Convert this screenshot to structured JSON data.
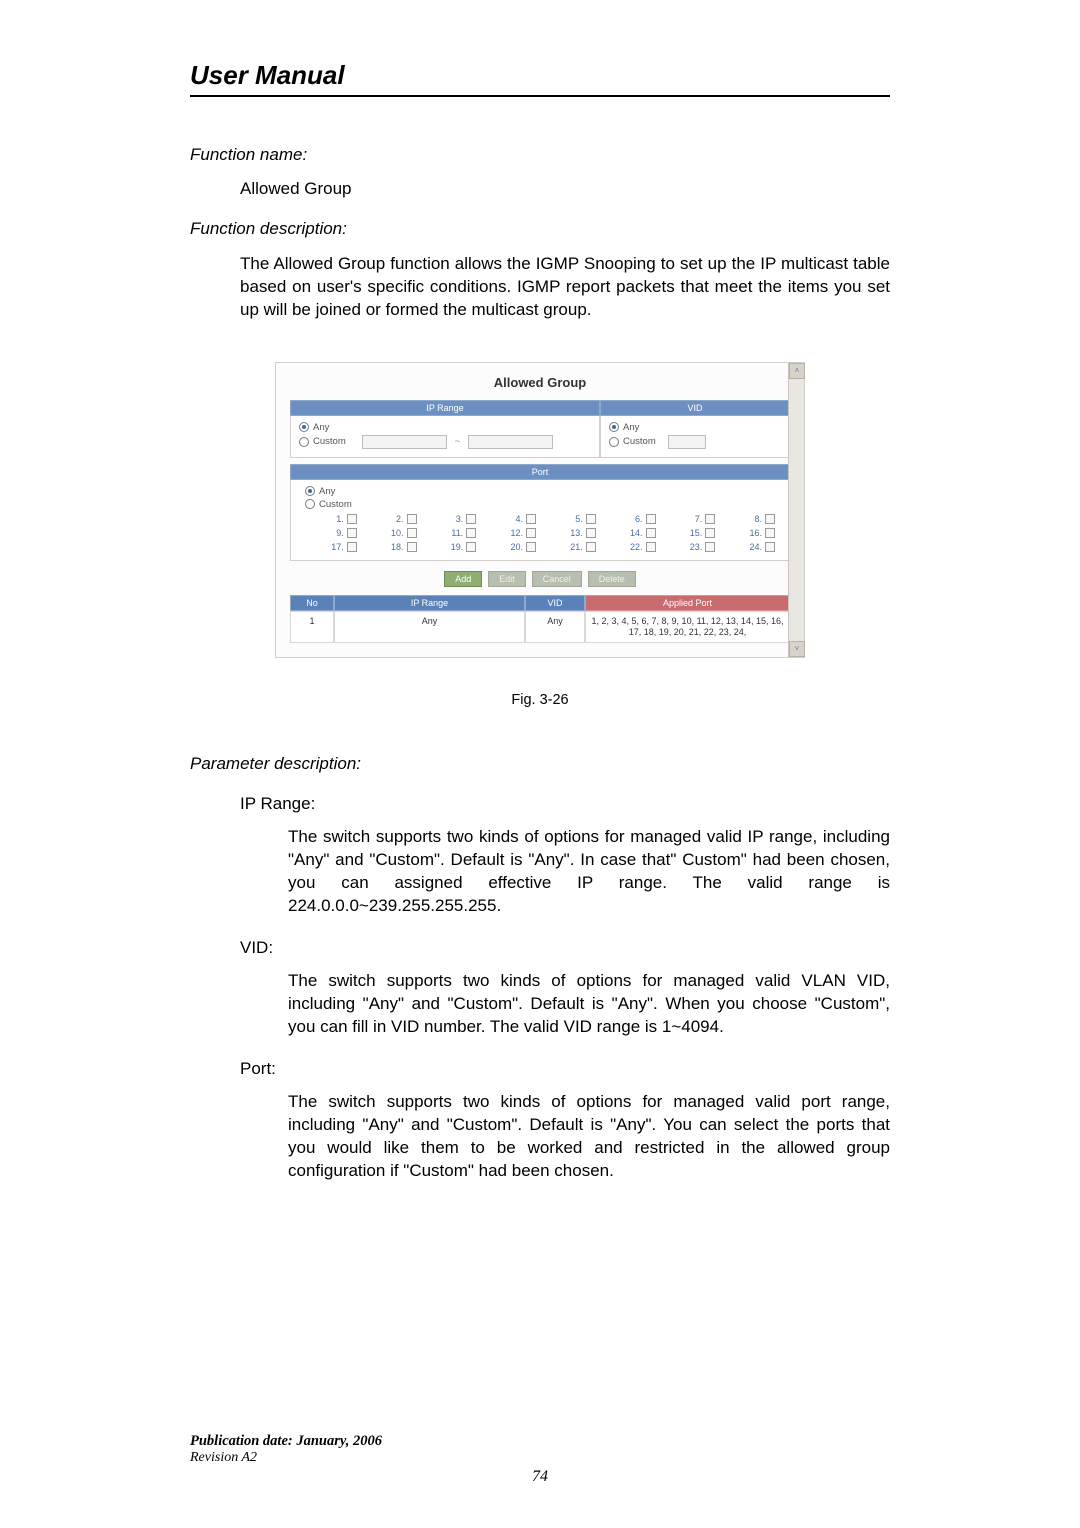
{
  "header_title": "User Manual",
  "function_name_label": "Function name:",
  "function_name": "Allowed Group",
  "function_desc_label": "Function description:",
  "function_desc": "The Allowed Group function allows the IGMP Snooping to set up the IP multicast table based on user's specific conditions. IGMP report packets that meet the items you set up will be joined or formed the multicast group.",
  "screenshot": {
    "title": "Allowed Group",
    "ip_range_header": "IP Range",
    "vid_header": "VID",
    "any_label": "Any",
    "custom_label": "Custom",
    "tilde": "~",
    "port_header": "Port",
    "port_numbers": [
      "1.",
      "2.",
      "3.",
      "4.",
      "5.",
      "6.",
      "7.",
      "8.",
      "9.",
      "10.",
      "11.",
      "12.",
      "13.",
      "14.",
      "15.",
      "16.",
      "17.",
      "18.",
      "19.",
      "20.",
      "21.",
      "22.",
      "23.",
      "24."
    ],
    "btn_add": "Add",
    "btn_edit": "Edit",
    "btn_cancel": "Cancel",
    "btn_delete": "Delete",
    "col_no": "No",
    "col_iprange": "IP Range",
    "col_vid": "VID",
    "col_applied": "Applied Port",
    "row": {
      "no": "1",
      "ipr": "Any",
      "vid": "Any",
      "ap": "1, 2, 3, 4, 5, 6, 7, 8, 9, 10, 11, 12, 13, 14, 15, 16, 17, 18, 19, 20, 21, 22, 23, 24,"
    },
    "scroll_up": "˄",
    "scroll_down": "˅",
    "colors": {
      "header_blue": "#6b90c1",
      "header_red": "#c96b6e",
      "btn_green": "#8faf72",
      "link_blue": "#4a6fa0"
    }
  },
  "fig_caption": "Fig. 3-26",
  "param_label": "Parameter description:",
  "params": {
    "ip_range": {
      "name": "IP Range:",
      "desc": "The switch supports two kinds of options for managed valid IP range, including \"Any\" and \"Custom\". Default is \"Any\". In case that\" Custom\" had been chosen, you can assigned effective IP range. The valid range is 224.0.0.0~239.255.255.255."
    },
    "vid": {
      "name": "VID:",
      "desc": "The switch supports two kinds of options for managed valid VLAN VID, including \"Any\" and \"Custom\". Default is \"Any\". When you choose \"Custom\", you can fill in VID number. The valid VID range is 1~4094."
    },
    "port": {
      "name": "Port:",
      "desc": "The switch supports two kinds of options for managed valid port range, including \"Any\" and \"Custom\". Default is \"Any\". You can select the ports that you would like them to be worked and restricted in the allowed group configuration if \"Custom\" had been chosen."
    }
  },
  "footer": {
    "pubdate": "Publication date: January, 2006",
    "revision": "Revision A2",
    "page_number": "74"
  }
}
